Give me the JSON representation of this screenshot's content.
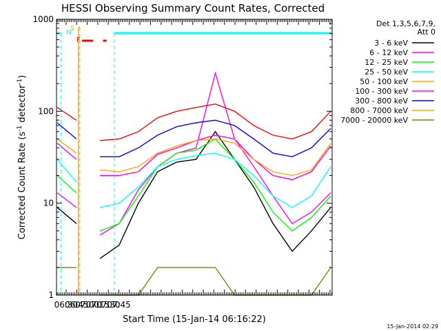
{
  "chart_data": {
    "type": "line",
    "title": "HESSI Observing Summary Count Rates, Corrected",
    "xlabel": "Start Time (15-Jan-14 06:16:22)",
    "ylabel": "Corrected Count Rate (s⁻¹ detector⁻¹)",
    "ylabel_parts": {
      "main": "Corrected Count Rate (s",
      "sup1": "-1",
      "mid": " detector",
      "sup2": "-1",
      "end": ")"
    },
    "yscale": "log",
    "ylim": [
      1,
      1000
    ],
    "xlim_minutes": [
      376.37,
      768
    ],
    "x_ticks": [
      {
        "label": "06:30",
        "minute": 390
      },
      {
        "label": "06:45",
        "minute": 405
      },
      {
        "label": "07:00",
        "minute": 420
      },
      {
        "label": "07:15",
        "minute": 435
      },
      {
        "label": "07:30",
        "minute": 450
      },
      {
        "label": "07:45",
        "minute": 465
      }
    ],
    "y_ticks": [
      {
        "label": "1",
        "value": 1
      },
      {
        "label": "10",
        "value": 10
      },
      {
        "label": "100",
        "value": 100
      },
      {
        "label": "1000",
        "value": 1000
      }
    ],
    "legend": {
      "header": [
        "Det 1,3,5,6,7,9,",
        "Att 0"
      ],
      "placement": "right"
    },
    "series": [
      {
        "name": "3 - 6 keV",
        "color": "#000000",
        "values": [
          9,
          6,
          2.5,
          3.5,
          10,
          22,
          28,
          30,
          60,
          30,
          15,
          6,
          3,
          5,
          9
        ]
      },
      {
        "name": "6 - 12 keV",
        "color": "#ff00ff",
        "values": [
          13,
          9,
          4.5,
          6,
          14,
          25,
          35,
          40,
          260,
          50,
          25,
          12,
          6,
          8,
          13
        ]
      },
      {
        "name": "12 - 25 keV",
        "color": "#00ff00",
        "values": [
          20,
          13,
          5,
          6,
          12,
          25,
          35,
          38,
          50,
          30,
          17,
          8,
          5,
          7,
          12
        ]
      },
      {
        "name": "25 - 50 keV",
        "color": "#00ffff",
        "values": [
          30,
          17,
          9,
          10,
          15,
          25,
          30,
          33,
          35,
          30,
          20,
          12,
          9,
          12,
          25
        ]
      },
      {
        "name": "50 - 100 keV",
        "color": "#ffa500",
        "values": [
          45,
          30,
          20,
          20,
          22,
          34,
          40,
          48,
          55,
          50,
          30,
          20,
          18,
          22,
          42
        ]
      },
      {
        "name": "100 - 300 keV",
        "color": "#ff00ff",
        "values": [
          45,
          30,
          20,
          20,
          22,
          34,
          40,
          48,
          55,
          50,
          30,
          20,
          18,
          22,
          42
        ]
      },
      {
        "name": "300 - 800 keV",
        "color": "#0000ff",
        "values": [
          75,
          50,
          32,
          32,
          40,
          55,
          68,
          75,
          80,
          70,
          50,
          35,
          32,
          40,
          65
        ]
      },
      {
        "name": "800 - 7000 keV",
        "color": "#ffa500",
        "values": [
          50,
          35,
          23,
          22,
          25,
          35,
          42,
          48,
          50,
          45,
          30,
          22,
          20,
          23,
          45
        ]
      },
      {
        "name": "7000 - 20000 keV",
        "color": "#808000",
        "values": [
          2,
          2,
          1,
          1,
          1,
          2,
          2,
          2,
          2,
          1,
          1,
          1,
          1,
          1,
          2
        ]
      }
    ],
    "red_series": {
      "name": "",
      "color": "#ff0000",
      "values": [
        110,
        80,
        48,
        50,
        60,
        85,
        100,
        110,
        120,
        100,
        70,
        55,
        50,
        60,
        100
      ]
    },
    "flag_labels": {
      "night": "N",
      "saa": "S",
      "flare": "F"
    },
    "colors": {
      "night": "#00ffff",
      "saa": "#ffa500",
      "flare": "#ff0000",
      "axis": "#000000"
    }
  },
  "footer": {
    "timestamp": "15-Jan-2014 02:29"
  }
}
